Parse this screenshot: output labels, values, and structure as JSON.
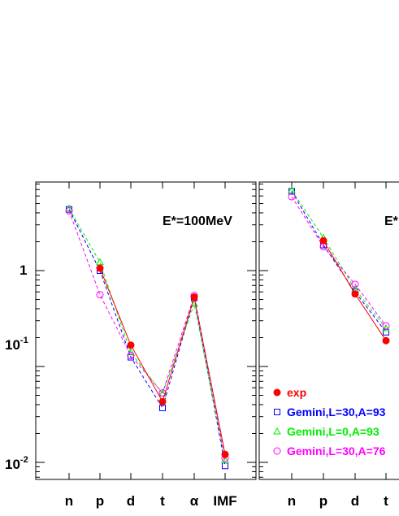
{
  "chart_data": [
    {
      "type": "line",
      "yscale": "log",
      "ylim": [
        0.006,
        40
      ],
      "categories": [
        "n",
        "p",
        "d",
        "t",
        "α",
        "IMF"
      ],
      "y_tick_labels": [
        {
          "value": 1,
          "base": "1",
          "exp": ""
        },
        {
          "value": 0.1,
          "base": "10",
          "exp": "-1"
        },
        {
          "value": 0.01,
          "base": "10",
          "exp": "-2"
        }
      ],
      "annotation": "E*=100MeV",
      "series": [
        {
          "name": "exp",
          "color": "#ff0000",
          "marker": "filled-circle",
          "dash": "solid",
          "values": [
            null,
            1.06,
            0.167,
            0.043,
            0.53,
            0.0121
          ]
        },
        {
          "name": "Gemini,L=30,A=93",
          "color": "#0000ff",
          "marker": "square",
          "dash": "dashed",
          "values": [
            4.35,
            1.0,
            0.125,
            0.037,
            0.52,
            0.0092
          ]
        },
        {
          "name": "Gemini,L=0,A=93",
          "color": "#00ee00",
          "marker": "triangle",
          "dash": "dashed",
          "values": [
            4.45,
            1.22,
            0.14,
            0.052,
            0.45,
            0.0105
          ]
        },
        {
          "name": "Gemini,L=30,A=76",
          "color": "#ff00ff",
          "marker": "circle",
          "dash": "dashed",
          "values": [
            4.2,
            0.56,
            0.13,
            0.053,
            0.55,
            0.011
          ]
        }
      ]
    },
    {
      "type": "line",
      "yscale": "log",
      "ylim": [
        0.006,
        40
      ],
      "categories": [
        "n",
        "p",
        "d",
        "t"
      ],
      "annotation": "E*",
      "series": [
        {
          "name": "exp",
          "color": "#ff0000",
          "marker": "filled-circle",
          "dash": "solid",
          "values": [
            null,
            2.05,
            0.57,
            0.186
          ]
        },
        {
          "name": "Gemini,L=30,A=93",
          "color": "#0000ff",
          "marker": "square",
          "dash": "dashed",
          "values": [
            6.7,
            1.85,
            0.6,
            0.228
          ]
        },
        {
          "name": "Gemini,L=0,A=93",
          "color": "#00ee00",
          "marker": "triangle",
          "dash": "dashed",
          "values": [
            6.9,
            2.2,
            0.64,
            0.25
          ]
        },
        {
          "name": "Gemini,L=30,A=76",
          "color": "#ff00ff",
          "marker": "circle",
          "dash": "dashed",
          "values": [
            5.9,
            1.78,
            0.72,
            0.265
          ]
        }
      ]
    }
  ],
  "legend": [
    {
      "label": "exp",
      "color": "#ff0000",
      "marker": "filled-circle"
    },
    {
      "label": "Gemini,L=30,A=93",
      "color": "#0000ff",
      "marker": "square"
    },
    {
      "label": "Gemini,L=0,A=93",
      "color": "#00ee00",
      "marker": "triangle"
    },
    {
      "label": "Gemini,L=30,A=76",
      "color": "#ff00ff",
      "marker": "circle"
    }
  ]
}
